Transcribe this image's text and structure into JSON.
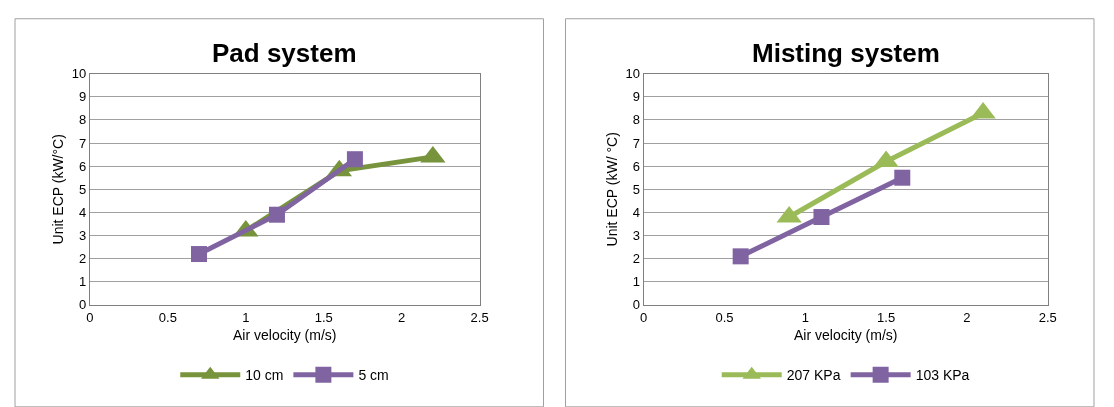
{
  "chart_data": [
    {
      "type": "line",
      "title": "Pad system",
      "xlabel": "Air velocity (m/s)",
      "ylabel": "Unit ECP (kW/°C)",
      "xlim": [
        0,
        2.5
      ],
      "xticks": [
        0,
        0.5,
        1,
        1.5,
        2,
        2.5
      ],
      "ylim": [
        0,
        10
      ],
      "yticks": [
        0,
        1,
        2,
        3,
        4,
        5,
        6,
        7,
        8,
        9,
        10
      ],
      "grid": "y",
      "legend": "bottom",
      "series": [
        {
          "name": "10 cm",
          "color": "#77933c",
          "marker": "triangle",
          "x": [
            1.0,
            1.6,
            2.2
          ],
          "values": [
            3.2,
            5.8,
            6.4
          ]
        },
        {
          "name": "5 cm",
          "color": "#8064a2",
          "marker": "square",
          "x": [
            0.7,
            1.2,
            1.7
          ],
          "values": [
            2.2,
            3.9,
            6.3
          ]
        }
      ]
    },
    {
      "type": "line",
      "title": "Misting system",
      "xlabel": "Air velocity (m/s)",
      "ylabel": "Unit ECP (kW/ °C)",
      "xlim": [
        0,
        2.5
      ],
      "xticks": [
        0,
        0.5,
        1,
        1.5,
        2,
        2.5
      ],
      "ylim": [
        0,
        10
      ],
      "yticks": [
        0,
        1,
        2,
        3,
        4,
        5,
        6,
        7,
        8,
        9,
        10
      ],
      "grid": "y",
      "legend": "bottom",
      "series": [
        {
          "name": "207 KPa",
          "color": "#9bbb59",
          "marker": "triangle",
          "x": [
            0.9,
            1.5,
            2.1
          ],
          "values": [
            3.8,
            6.2,
            8.3
          ]
        },
        {
          "name": "103 KPa",
          "color": "#8064a2",
          "marker": "square",
          "x": [
            0.6,
            1.1,
            1.6
          ],
          "values": [
            2.1,
            3.8,
            5.5
          ]
        }
      ]
    }
  ]
}
